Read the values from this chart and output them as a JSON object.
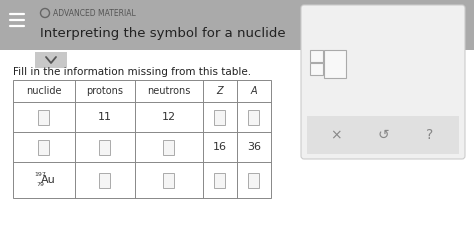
{
  "header_bg": "#aaaaaa",
  "circle_color": "#888888",
  "advanced_label": "ADVANCED MATERIAL",
  "title": "Interpreting the symbol for a nuclide",
  "hamburger_color": "#ffffff",
  "chevron_bg": "#c8c8c8",
  "body_bg": "#ffffff",
  "fill_in_text": "Fill in the information missing from this table.",
  "table_header": [
    "nuclide",
    "protons",
    "neutrons",
    "Z",
    "A"
  ],
  "table_border_color": "#888888",
  "table_bg": "#ffffff",
  "side_panel_bg": "#f0f0f0",
  "side_panel_border": "#cccccc",
  "button_bar_bg": "#e0e0e0",
  "button_texts": [
    "×",
    "↺",
    "?"
  ],
  "button_text_color": "#888888",
  "input_box_fill": "#f5f5f5",
  "input_box_border": "#aaaaaa"
}
